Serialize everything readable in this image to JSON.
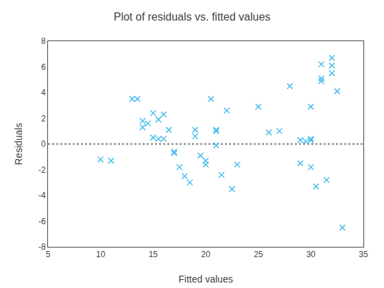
{
  "chart_data": {
    "type": "scatter",
    "title": "Plot of residuals vs. fitted values",
    "xlabel": "Fitted values",
    "ylabel": "Residuals",
    "x": [
      10,
      11,
      13,
      13.5,
      14,
      14,
      14.5,
      15,
      15,
      15.5,
      15.5,
      16,
      16,
      16.5,
      17,
      17,
      17.5,
      18,
      18.5,
      19,
      19,
      19.5,
      20,
      20,
      20.5,
      21,
      21,
      21,
      21.5,
      22,
      22.5,
      23,
      25,
      26,
      27,
      28,
      29,
      29,
      29.5,
      30,
      30,
      30,
      30,
      30.5,
      31,
      31,
      31,
      31.5,
      32,
      32,
      32,
      32.5,
      33
    ],
    "values": [
      -1.2,
      -1.3,
      3.5,
      3.5,
      1.8,
      1.3,
      1.6,
      2.4,
      0.5,
      1.9,
      0.4,
      2.3,
      0.4,
      1.1,
      -0.6,
      -0.7,
      -1.8,
      -2.5,
      -3.0,
      1.1,
      0.6,
      -0.9,
      -1.3,
      -1.6,
      3.5,
      1.1,
      1.0,
      -0.1,
      -2.4,
      2.6,
      -3.5,
      -1.6,
      2.9,
      0.9,
      1.0,
      4.5,
      0.3,
      -1.5,
      0.2,
      2.9,
      0.4,
      0.3,
      -1.8,
      -3.3,
      6.2,
      5.1,
      4.9,
      -2.8,
      6.7,
      6.1,
      5.5,
      4.1,
      -6.5
    ],
    "color": "#4DBEEE",
    "marker": "x",
    "hline": {
      "y": 0,
      "color": "black",
      "line_style": "dotted"
    },
    "xlim": [
      5,
      35
    ],
    "ylim": [
      -8,
      8
    ],
    "xticks": [
      5,
      10,
      15,
      20,
      25,
      30,
      35
    ],
    "yticks": [
      -8,
      -6,
      -4,
      -2,
      0,
      2,
      4,
      6,
      8
    ],
    "grid": false
  }
}
